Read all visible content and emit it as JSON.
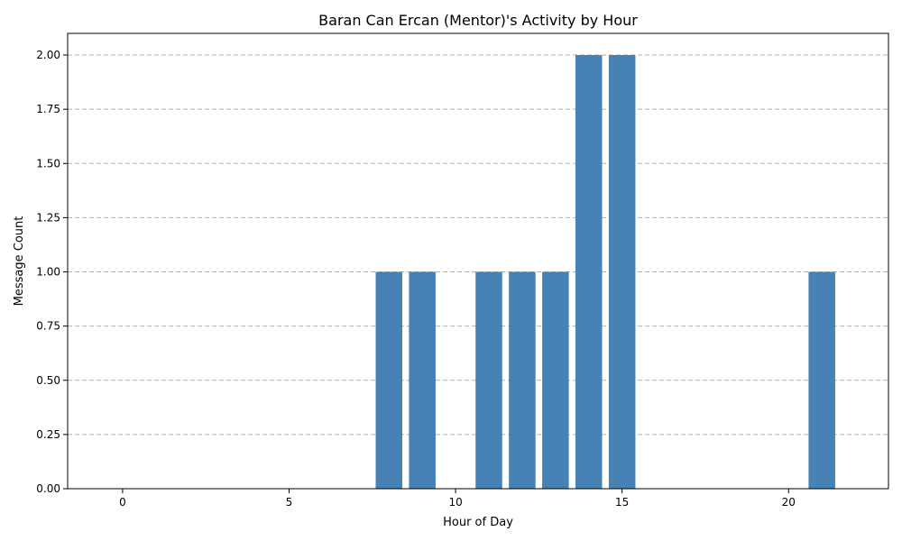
{
  "chart_data": {
    "type": "bar",
    "title": "Baran Can Ercan (Mentor)'s Activity by Hour",
    "xlabel": "Hour of Day",
    "ylabel": "Message Count",
    "x": [
      8,
      9,
      11,
      12,
      13,
      14,
      15,
      21
    ],
    "values": [
      1,
      1,
      1,
      1,
      1,
      2,
      2,
      1
    ],
    "xlim": [
      -1.65,
      23.0
    ],
    "ylim": [
      0,
      2.1
    ],
    "xticks": [
      0,
      5,
      10,
      15,
      20
    ],
    "yticks": [
      0,
      0.25,
      0.5,
      0.75,
      1.0,
      1.25,
      1.5,
      1.75,
      2.0
    ],
    "ytick_labels": [
      "0.00",
      "0.25",
      "0.50",
      "0.75",
      "1.00",
      "1.25",
      "1.50",
      "1.75",
      "2.00"
    ],
    "grid": "y, dashed",
    "bar_color": "#4682b4"
  }
}
